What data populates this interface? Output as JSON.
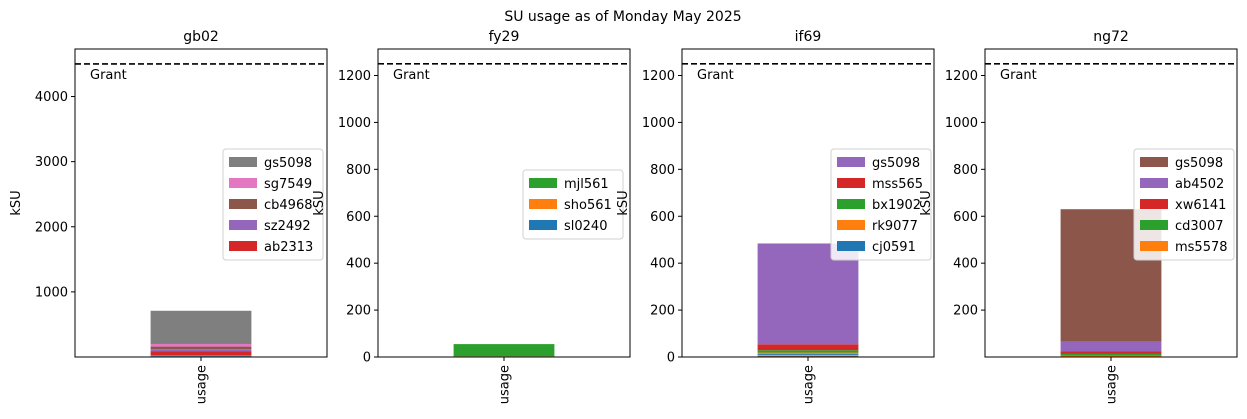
{
  "figure": {
    "title": "SU usage as of Monday May 2025"
  },
  "chart_data": [
    {
      "type": "bar",
      "stacked": true,
      "title": "gb02",
      "xlabel": "",
      "ylabel": "kSU",
      "categories": [
        "usage"
      ],
      "ylim": [
        0,
        4730
      ],
      "yticks": [
        1000,
        2000,
        3000,
        4000
      ],
      "grant": 4500,
      "grant_label": "Grant",
      "legend_position": "right",
      "series": [
        {
          "name": "ab2313",
          "values": [
            60
          ],
          "color": "#d62728"
        },
        {
          "name": "sz2492",
          "values": [
            30
          ],
          "color": "#9467bd"
        },
        {
          "name": "cb4968",
          "values": [
            40
          ],
          "color": "#8c564b"
        },
        {
          "name": "sg7549",
          "values": [
            40
          ],
          "color": "#e377c2"
        },
        {
          "name": "gs5098",
          "values": [
            510
          ],
          "color": "#7f7f7f"
        }
      ],
      "other_series": [
        {
          "values": [
            10
          ],
          "color": "#2ca02c"
        },
        {
          "values": [
            10
          ],
          "color": "#1f77b4"
        },
        {
          "values": [
            10
          ],
          "color": "#ff7f0e"
        }
      ]
    },
    {
      "type": "bar",
      "stacked": true,
      "title": "fy29",
      "xlabel": "",
      "ylabel": "kSU",
      "categories": [
        "usage"
      ],
      "ylim": [
        0,
        1313
      ],
      "yticks": [
        0,
        200,
        400,
        600,
        800,
        1000,
        1200
      ],
      "grant": 1250,
      "grant_label": "Grant",
      "legend_position": "center-right",
      "series": [
        {
          "name": "sl0240",
          "values": [
            1
          ],
          "color": "#1f77b4"
        },
        {
          "name": "sho561",
          "values": [
            2
          ],
          "color": "#ff7f0e"
        },
        {
          "name": "mjl561",
          "values": [
            52
          ],
          "color": "#2ca02c"
        }
      ]
    },
    {
      "type": "bar",
      "stacked": true,
      "title": "if69",
      "xlabel": "",
      "ylabel": "kSU",
      "categories": [
        "usage"
      ],
      "ylim": [
        0,
        1313
      ],
      "yticks": [
        0,
        200,
        400,
        600,
        800,
        1000,
        1200
      ],
      "grant": 1250,
      "grant_label": "Grant",
      "legend_position": "right",
      "series": [
        {
          "name": "cj0591",
          "values": [
            5
          ],
          "color": "#1f77b4"
        },
        {
          "name": "rk9077",
          "values": [
            5
          ],
          "color": "#ff7f0e"
        },
        {
          "name": "bx1902",
          "values": [
            10
          ],
          "color": "#2ca02c"
        },
        {
          "name": "mss565",
          "values": [
            25
          ],
          "color": "#d62728"
        },
        {
          "name": "gs5098",
          "values": [
            430
          ],
          "color": "#9467bd"
        }
      ],
      "other_series": [
        {
          "values": [
            5
          ],
          "color": "#bcbd22"
        },
        {
          "values": [
            4
          ],
          "color": "#8c564b"
        }
      ]
    },
    {
      "type": "bar",
      "stacked": true,
      "title": "ng72",
      "xlabel": "",
      "ylabel": "kSU",
      "categories": [
        "usage"
      ],
      "ylim": [
        0,
        1313
      ],
      "yticks": [
        200,
        400,
        600,
        800,
        1000,
        1200
      ],
      "grant": 1250,
      "grant_label": "Grant",
      "legend_position": "right",
      "series": [
        {
          "name": "ms5578",
          "values": [
            5
          ],
          "color": "#ff7f0e"
        },
        {
          "name": "cd3007",
          "values": [
            8
          ],
          "color": "#2ca02c"
        },
        {
          "name": "xw6141",
          "values": [
            12
          ],
          "color": "#d62728"
        },
        {
          "name": "ab4502",
          "values": [
            40
          ],
          "color": "#9467bd"
        },
        {
          "name": "gs5098",
          "values": [
            565
          ],
          "color": "#8c564b"
        }
      ]
    }
  ]
}
